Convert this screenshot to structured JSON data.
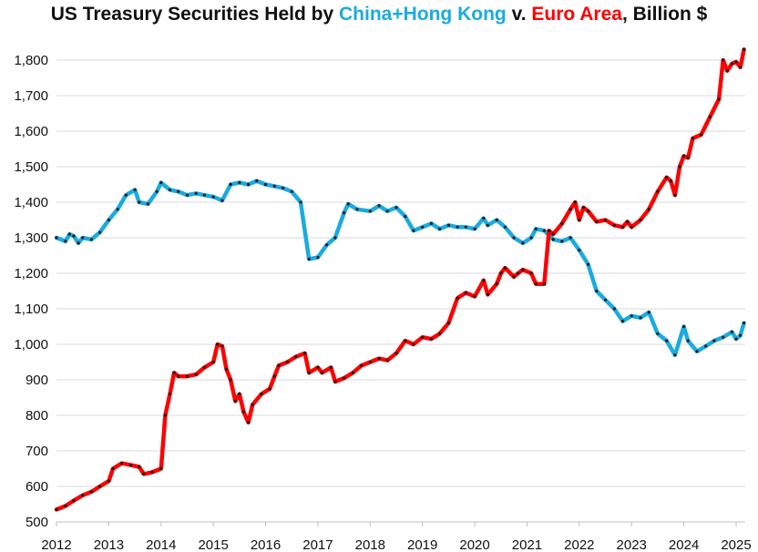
{
  "chart_data": {
    "type": "line",
    "title": {
      "prefix": "US Treasury Securities Held by ",
      "china": "China+Hong Kong",
      "mid": " v. ",
      "euro": "Euro Area",
      "suffix": ", Billion $"
    },
    "xlabel": "",
    "ylabel": "",
    "xlim": [
      2012,
      2025.15
    ],
    "ylim": [
      500,
      1850
    ],
    "yticks": [
      500,
      600,
      700,
      800,
      900,
      1000,
      1100,
      1200,
      1300,
      1400,
      1500,
      1600,
      1700,
      1800
    ],
    "ytick_labels": [
      "500",
      "600",
      "700",
      "800",
      "900",
      "1,000",
      "1,100",
      "1,200",
      "1,300",
      "1,400",
      "1,500",
      "1,600",
      "1,700",
      "1,800"
    ],
    "xticks": [
      2012,
      2013,
      2014,
      2015,
      2016,
      2017,
      2018,
      2019,
      2020,
      2021,
      2022,
      2023,
      2024,
      2025
    ],
    "xtick_labels": [
      "2012",
      "2013",
      "2014",
      "2015",
      "2016",
      "2017",
      "2018",
      "2019",
      "2020",
      "2021",
      "2022",
      "2023",
      "2024",
      "2025"
    ],
    "grid": "horizontal",
    "legend": "in title",
    "series": [
      {
        "name": "China+Hong Kong",
        "color": "#1aabe0",
        "points": [
          [
            2012.0,
            1300
          ],
          [
            2012.17,
            1290
          ],
          [
            2012.25,
            1310
          ],
          [
            2012.33,
            1305
          ],
          [
            2012.42,
            1285
          ],
          [
            2012.5,
            1300
          ],
          [
            2012.67,
            1295
          ],
          [
            2012.83,
            1315
          ],
          [
            2013.0,
            1350
          ],
          [
            2013.17,
            1380
          ],
          [
            2013.33,
            1420
          ],
          [
            2013.5,
            1435
          ],
          [
            2013.58,
            1400
          ],
          [
            2013.75,
            1395
          ],
          [
            2013.92,
            1430
          ],
          [
            2014.0,
            1455
          ],
          [
            2014.17,
            1435
          ],
          [
            2014.33,
            1430
          ],
          [
            2014.5,
            1420
          ],
          [
            2014.67,
            1425
          ],
          [
            2014.83,
            1420
          ],
          [
            2015.0,
            1415
          ],
          [
            2015.17,
            1405
          ],
          [
            2015.33,
            1450
          ],
          [
            2015.5,
            1455
          ],
          [
            2015.67,
            1450
          ],
          [
            2015.83,
            1460
          ],
          [
            2016.0,
            1450
          ],
          [
            2016.17,
            1445
          ],
          [
            2016.33,
            1440
          ],
          [
            2016.5,
            1430
          ],
          [
            2016.67,
            1400
          ],
          [
            2016.83,
            1240
          ],
          [
            2017.0,
            1245
          ],
          [
            2017.17,
            1280
          ],
          [
            2017.33,
            1300
          ],
          [
            2017.5,
            1370
          ],
          [
            2017.58,
            1395
          ],
          [
            2017.75,
            1380
          ],
          [
            2018.0,
            1375
          ],
          [
            2018.17,
            1390
          ],
          [
            2018.33,
            1375
          ],
          [
            2018.5,
            1385
          ],
          [
            2018.67,
            1360
          ],
          [
            2018.83,
            1320
          ],
          [
            2019.0,
            1330
          ],
          [
            2019.17,
            1340
          ],
          [
            2019.33,
            1325
          ],
          [
            2019.5,
            1335
          ],
          [
            2019.67,
            1330
          ],
          [
            2019.83,
            1330
          ],
          [
            2020.0,
            1325
          ],
          [
            2020.17,
            1355
          ],
          [
            2020.25,
            1335
          ],
          [
            2020.42,
            1350
          ],
          [
            2020.58,
            1330
          ],
          [
            2020.75,
            1300
          ],
          [
            2020.92,
            1285
          ],
          [
            2021.08,
            1300
          ],
          [
            2021.17,
            1325
          ],
          [
            2021.33,
            1320
          ],
          [
            2021.5,
            1295
          ],
          [
            2021.67,
            1290
          ],
          [
            2021.83,
            1300
          ],
          [
            2022.0,
            1265
          ],
          [
            2022.17,
            1225
          ],
          [
            2022.33,
            1150
          ],
          [
            2022.5,
            1125
          ],
          [
            2022.67,
            1100
          ],
          [
            2022.83,
            1065
          ],
          [
            2023.0,
            1080
          ],
          [
            2023.17,
            1075
          ],
          [
            2023.33,
            1090
          ],
          [
            2023.5,
            1030
          ],
          [
            2023.67,
            1010
          ],
          [
            2023.83,
            970
          ],
          [
            2024.0,
            1050
          ],
          [
            2024.08,
            1010
          ],
          [
            2024.25,
            980
          ],
          [
            2024.42,
            995
          ],
          [
            2024.58,
            1010
          ],
          [
            2024.75,
            1020
          ],
          [
            2024.92,
            1035
          ],
          [
            2025.0,
            1015
          ],
          [
            2025.08,
            1025
          ],
          [
            2025.15,
            1060
          ]
        ]
      },
      {
        "name": "Euro Area",
        "color": "#ff0000",
        "points": [
          [
            2012.0,
            535
          ],
          [
            2012.17,
            545
          ],
          [
            2012.33,
            560
          ],
          [
            2012.5,
            575
          ],
          [
            2012.67,
            585
          ],
          [
            2012.83,
            600
          ],
          [
            2013.0,
            615
          ],
          [
            2013.08,
            650
          ],
          [
            2013.25,
            665
          ],
          [
            2013.42,
            660
          ],
          [
            2013.58,
            655
          ],
          [
            2013.67,
            635
          ],
          [
            2013.83,
            640
          ],
          [
            2014.0,
            650
          ],
          [
            2014.08,
            800
          ],
          [
            2014.17,
            860
          ],
          [
            2014.25,
            920
          ],
          [
            2014.33,
            910
          ],
          [
            2014.5,
            910
          ],
          [
            2014.67,
            915
          ],
          [
            2014.83,
            935
          ],
          [
            2015.0,
            950
          ],
          [
            2015.08,
            1000
          ],
          [
            2015.17,
            995
          ],
          [
            2015.25,
            930
          ],
          [
            2015.33,
            900
          ],
          [
            2015.42,
            840
          ],
          [
            2015.5,
            860
          ],
          [
            2015.58,
            810
          ],
          [
            2015.67,
            780
          ],
          [
            2015.75,
            830
          ],
          [
            2015.92,
            860
          ],
          [
            2016.08,
            875
          ],
          [
            2016.17,
            910
          ],
          [
            2016.25,
            940
          ],
          [
            2016.42,
            950
          ],
          [
            2016.58,
            965
          ],
          [
            2016.75,
            975
          ],
          [
            2016.83,
            920
          ],
          [
            2017.0,
            935
          ],
          [
            2017.08,
            920
          ],
          [
            2017.25,
            935
          ],
          [
            2017.33,
            895
          ],
          [
            2017.5,
            905
          ],
          [
            2017.67,
            920
          ],
          [
            2017.83,
            940
          ],
          [
            2018.0,
            950
          ],
          [
            2018.17,
            960
          ],
          [
            2018.33,
            955
          ],
          [
            2018.5,
            975
          ],
          [
            2018.67,
            1010
          ],
          [
            2018.83,
            1000
          ],
          [
            2019.0,
            1020
          ],
          [
            2019.17,
            1015
          ],
          [
            2019.33,
            1030
          ],
          [
            2019.5,
            1060
          ],
          [
            2019.67,
            1130
          ],
          [
            2019.83,
            1145
          ],
          [
            2020.0,
            1135
          ],
          [
            2020.17,
            1180
          ],
          [
            2020.25,
            1140
          ],
          [
            2020.42,
            1170
          ],
          [
            2020.5,
            1200
          ],
          [
            2020.58,
            1215
          ],
          [
            2020.75,
            1190
          ],
          [
            2020.83,
            1200
          ],
          [
            2020.92,
            1210
          ],
          [
            2021.08,
            1200
          ],
          [
            2021.17,
            1170
          ],
          [
            2021.33,
            1170
          ],
          [
            2021.42,
            1320
          ],
          [
            2021.5,
            1310
          ],
          [
            2021.67,
            1340
          ],
          [
            2021.83,
            1380
          ],
          [
            2021.92,
            1400
          ],
          [
            2022.0,
            1350
          ],
          [
            2022.08,
            1385
          ],
          [
            2022.17,
            1375
          ],
          [
            2022.33,
            1345
          ],
          [
            2022.5,
            1350
          ],
          [
            2022.67,
            1335
          ],
          [
            2022.83,
            1330
          ],
          [
            2022.92,
            1345
          ],
          [
            2023.0,
            1330
          ],
          [
            2023.17,
            1350
          ],
          [
            2023.33,
            1380
          ],
          [
            2023.5,
            1430
          ],
          [
            2023.67,
            1470
          ],
          [
            2023.75,
            1460
          ],
          [
            2023.83,
            1420
          ],
          [
            2023.92,
            1500
          ],
          [
            2024.0,
            1530
          ],
          [
            2024.08,
            1525
          ],
          [
            2024.17,
            1580
          ],
          [
            2024.33,
            1590
          ],
          [
            2024.5,
            1640
          ],
          [
            2024.67,
            1690
          ],
          [
            2024.75,
            1800
          ],
          [
            2024.83,
            1770
          ],
          [
            2024.92,
            1790
          ],
          [
            2025.0,
            1795
          ],
          [
            2025.08,
            1780
          ],
          [
            2025.15,
            1830
          ]
        ]
      }
    ]
  }
}
